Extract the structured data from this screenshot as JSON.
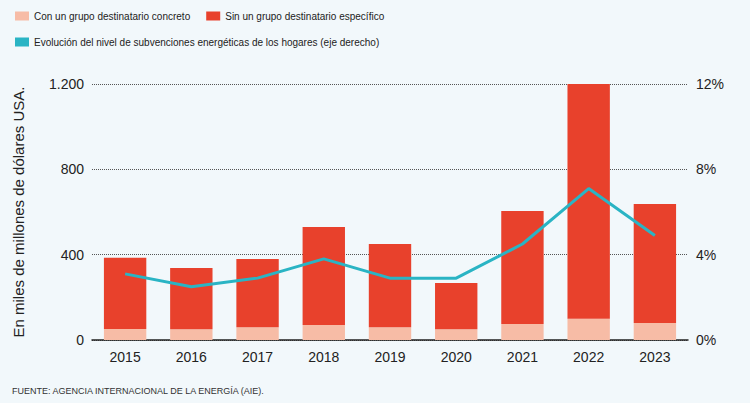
{
  "chart_data": {
    "type": "bar",
    "y_label": "En miles de millones de dólares USA.",
    "source": "FUENTE: AGENCIA INTERNACIONAL DE LA ENERGÍA (AIE).",
    "categories": [
      "2015",
      "2016",
      "2017",
      "2018",
      "2019",
      "2020",
      "2021",
      "2022",
      "2023"
    ],
    "stacked": true,
    "series": [
      {
        "name": "Con un grupo destinatario concreto",
        "type": "bar",
        "color": "#f7bca6",
        "values": [
          52,
          50,
          60,
          70,
          60,
          50,
          75,
          100,
          80
        ]
      },
      {
        "name": "Sin un grupo destinatario específico",
        "type": "bar",
        "color": "#e8412c",
        "values": [
          333,
          288,
          320,
          460,
          390,
          217,
          530,
          1100,
          558
        ]
      },
      {
        "name": "Evolución del nivel de subvenciones energéticas de los hogares (eje derecho)",
        "type": "line",
        "axis": "y2",
        "color": "#2ab4c4",
        "values": [
          3.1,
          2.5,
          2.9,
          3.8,
          2.9,
          2.9,
          4.5,
          7.1,
          4.9
        ]
      }
    ],
    "ylim": [
      0,
      1200
    ],
    "yticks": [
      0,
      400,
      800,
      {
        "value": 1200,
        "label": "1.200"
      }
    ],
    "y2lim": [
      0,
      12
    ],
    "y2ticks": [
      {
        "value": 0,
        "label": "0%"
      },
      {
        "value": 4,
        "label": "4%"
      },
      {
        "value": 8,
        "label": "8%"
      },
      {
        "value": 12,
        "label": "12%"
      }
    ],
    "grid": true,
    "legend": "top-left"
  }
}
